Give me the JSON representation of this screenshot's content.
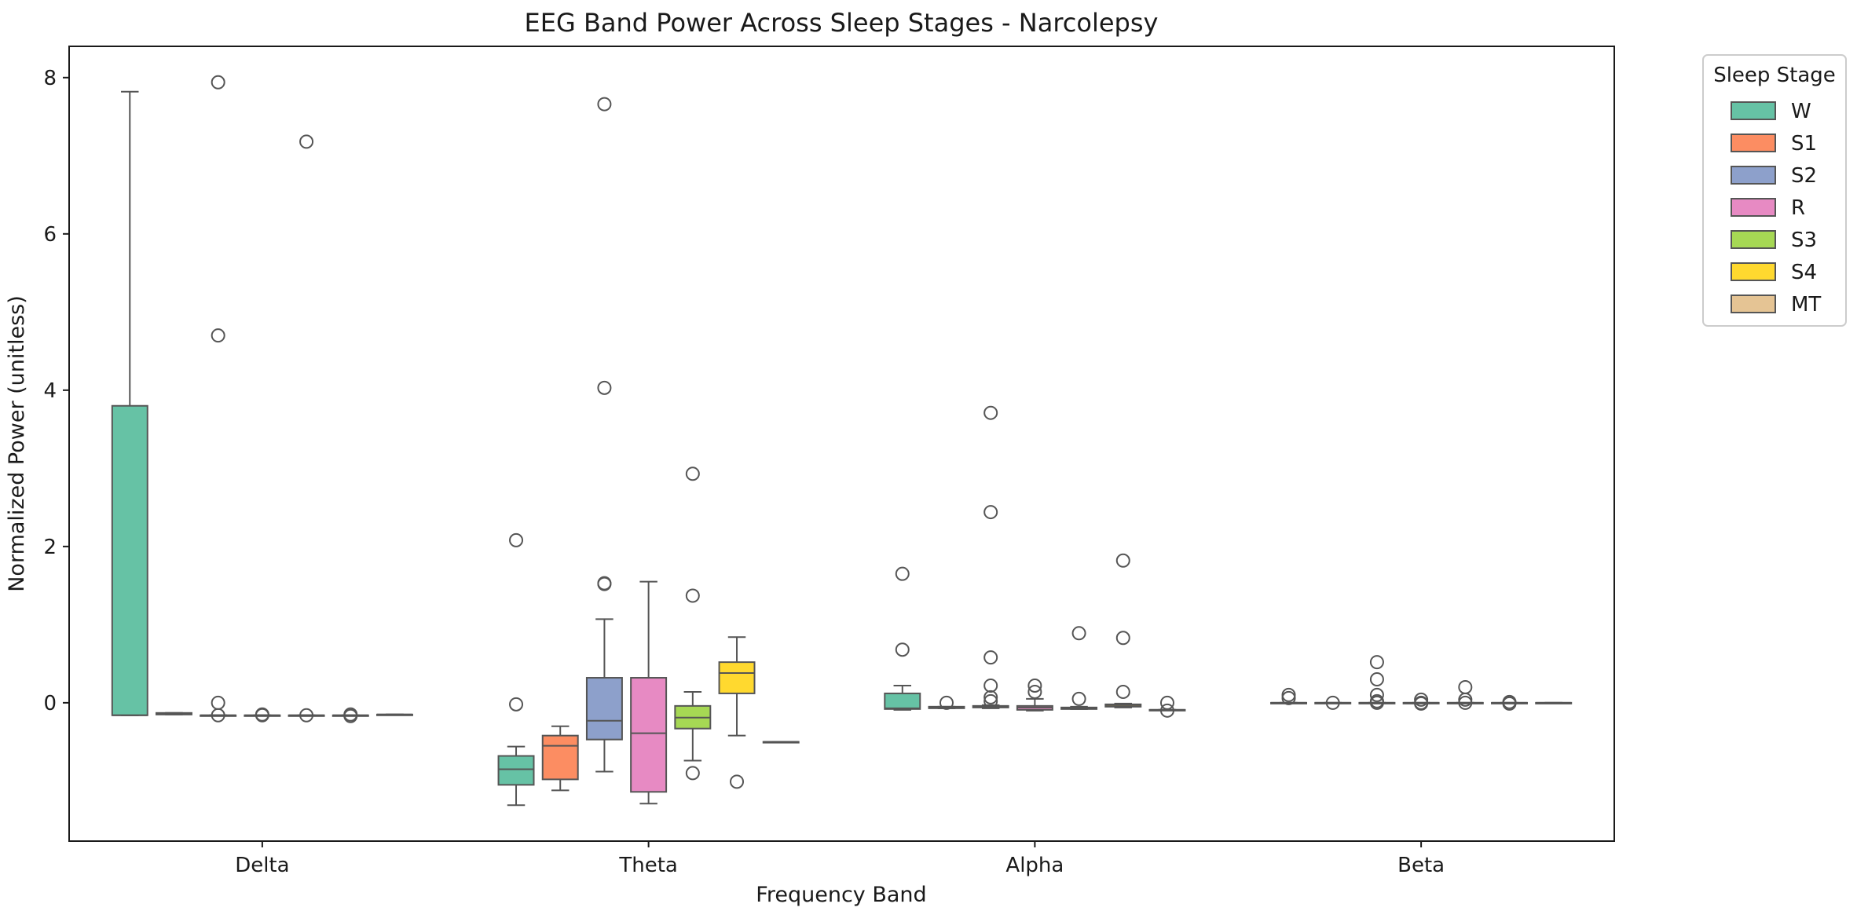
{
  "chart_data": {
    "type": "box",
    "title": "EEG Band Power Across Sleep Stages - Narcolepsy",
    "xlabel": "Frequency Band",
    "ylabel": "Normalized Power (unitless)",
    "categories": [
      "Delta",
      "Theta",
      "Alpha",
      "Beta"
    ],
    "ylim": [
      -1.77,
      8.4
    ],
    "yticks": [
      0,
      2,
      4,
      6,
      8
    ],
    "grid": false,
    "legend": {
      "title": "Sleep Stage",
      "placement": "outside-right-top"
    },
    "series": [
      {
        "name": "W",
        "color": "#66c2a5",
        "boxes": [
          {
            "category": "Delta",
            "whislo": -0.16,
            "q1": -0.16,
            "med": -0.16,
            "q3": 3.8,
            "whishi": 7.82,
            "fliers": []
          },
          {
            "category": "Theta",
            "whislo": -1.31,
            "q1": -1.05,
            "med": -0.85,
            "q3": -0.68,
            "whishi": -0.56,
            "fliers": [
              2.08,
              -0.02
            ]
          },
          {
            "category": "Alpha",
            "whislo": -0.09,
            "q1": -0.08,
            "med": -0.07,
            "q3": 0.12,
            "whishi": 0.22,
            "fliers": [
              1.65,
              0.68
            ]
          },
          {
            "category": "Beta",
            "whislo": 0.0,
            "q1": 0.0,
            "med": 0.0,
            "q3": 0.0,
            "whishi": 0.0,
            "fliers": [
              0.1,
              0.06
            ]
          }
        ]
      },
      {
        "name": "S1",
        "color": "#fc8d62",
        "boxes": [
          {
            "category": "Delta",
            "whislo": -0.15,
            "q1": -0.15,
            "med": -0.14,
            "q3": -0.13,
            "whishi": -0.13,
            "fliers": []
          },
          {
            "category": "Theta",
            "whislo": -1.12,
            "q1": -0.98,
            "med": -0.55,
            "q3": -0.42,
            "whishi": -0.3,
            "fliers": []
          },
          {
            "category": "Alpha",
            "whislo": -0.07,
            "q1": -0.07,
            "med": -0.06,
            "q3": -0.05,
            "whishi": -0.05,
            "fliers": [
              0.0
            ]
          },
          {
            "category": "Beta",
            "whislo": 0.0,
            "q1": 0.0,
            "med": 0.0,
            "q3": 0.0,
            "whishi": 0.0,
            "fliers": [
              0.0
            ]
          }
        ]
      },
      {
        "name": "S2",
        "color": "#8da0cb",
        "boxes": [
          {
            "category": "Delta",
            "whislo": -0.16,
            "q1": -0.16,
            "med": -0.16,
            "q3": -0.16,
            "whishi": -0.16,
            "fliers": [
              7.94,
              4.7,
              0.0,
              -0.16
            ]
          },
          {
            "category": "Theta",
            "whislo": -0.88,
            "q1": -0.47,
            "med": -0.23,
            "q3": 0.32,
            "whishi": 1.07,
            "fliers": [
              7.66,
              4.03,
              1.53,
              1.52
            ]
          },
          {
            "category": "Alpha",
            "whislo": -0.07,
            "q1": -0.06,
            "med": -0.05,
            "q3": -0.04,
            "whishi": -0.03,
            "fliers": [
              3.71,
              2.44,
              0.58,
              0.22,
              0.07,
              0.02
            ]
          },
          {
            "category": "Beta",
            "whislo": 0.0,
            "q1": 0.0,
            "med": 0.0,
            "q3": 0.0,
            "whishi": 0.0,
            "fliers": [
              0.52,
              0.3,
              0.1,
              0.02,
              0.0
            ]
          }
        ]
      },
      {
        "name": "R",
        "color": "#e78ac3",
        "boxes": [
          {
            "category": "Delta",
            "whislo": -0.16,
            "q1": -0.16,
            "med": -0.16,
            "q3": -0.16,
            "whishi": -0.16,
            "fliers": [
              -0.16,
              -0.15
            ]
          },
          {
            "category": "Theta",
            "whislo": -1.29,
            "q1": -1.14,
            "med": -0.39,
            "q3": 0.32,
            "whishi": 1.55,
            "fliers": []
          },
          {
            "category": "Alpha",
            "whislo": -0.1,
            "q1": -0.09,
            "med": -0.06,
            "q3": -0.04,
            "whishi": 0.05,
            "fliers": [
              0.22,
              0.14
            ]
          },
          {
            "category": "Beta",
            "whislo": 0.0,
            "q1": 0.0,
            "med": 0.0,
            "q3": 0.0,
            "whishi": 0.0,
            "fliers": [
              0.04,
              0.0,
              -0.01
            ]
          }
        ]
      },
      {
        "name": "S3",
        "color": "#a6d854",
        "boxes": [
          {
            "category": "Delta",
            "whislo": -0.16,
            "q1": -0.16,
            "med": -0.16,
            "q3": -0.16,
            "whishi": -0.16,
            "fliers": [
              7.18,
              -0.16
            ]
          },
          {
            "category": "Theta",
            "whislo": -0.74,
            "q1": -0.33,
            "med": -0.19,
            "q3": -0.04,
            "whishi": 0.14,
            "fliers": [
              2.93,
              1.37,
              -0.9
            ]
          },
          {
            "category": "Alpha",
            "whislo": -0.08,
            "q1": -0.08,
            "med": -0.07,
            "q3": -0.06,
            "whishi": -0.05,
            "fliers": [
              0.89,
              0.05
            ]
          },
          {
            "category": "Beta",
            "whislo": 0.0,
            "q1": 0.0,
            "med": 0.0,
            "q3": 0.0,
            "whishi": 0.0,
            "fliers": [
              0.2,
              0.04,
              0.0
            ]
          }
        ]
      },
      {
        "name": "S4",
        "color": "#ffd92f",
        "boxes": [
          {
            "category": "Delta",
            "whislo": -0.16,
            "q1": -0.16,
            "med": -0.16,
            "q3": -0.16,
            "whishi": -0.16,
            "fliers": [
              -0.17,
              -0.15
            ]
          },
          {
            "category": "Theta",
            "whislo": -0.42,
            "q1": 0.12,
            "med": 0.38,
            "q3": 0.52,
            "whishi": 0.84,
            "fliers": [
              -1.01
            ]
          },
          {
            "category": "Alpha",
            "whislo": -0.06,
            "q1": -0.05,
            "med": -0.03,
            "q3": -0.02,
            "whishi": -0.01,
            "fliers": [
              1.82,
              0.83,
              0.14
            ]
          },
          {
            "category": "Beta",
            "whislo": 0.0,
            "q1": 0.0,
            "med": 0.0,
            "q3": 0.0,
            "whishi": 0.0,
            "fliers": [
              0.01,
              -0.01
            ]
          }
        ]
      },
      {
        "name": "MT",
        "color": "#e5c494",
        "boxes": [
          {
            "category": "Delta",
            "whislo": -0.15,
            "q1": -0.15,
            "med": -0.15,
            "q3": -0.15,
            "whishi": -0.15,
            "fliers": []
          },
          {
            "category": "Theta",
            "whislo": -0.5,
            "q1": -0.5,
            "med": -0.5,
            "q3": -0.5,
            "whishi": -0.5,
            "fliers": []
          },
          {
            "category": "Alpha",
            "whislo": -0.09,
            "q1": -0.09,
            "med": -0.09,
            "q3": -0.09,
            "whishi": -0.09,
            "fliers": [
              0.0,
              -0.1
            ]
          },
          {
            "category": "Beta",
            "whislo": 0.0,
            "q1": 0.0,
            "med": 0.0,
            "q3": 0.0,
            "whishi": 0.0,
            "fliers": []
          }
        ]
      }
    ]
  }
}
